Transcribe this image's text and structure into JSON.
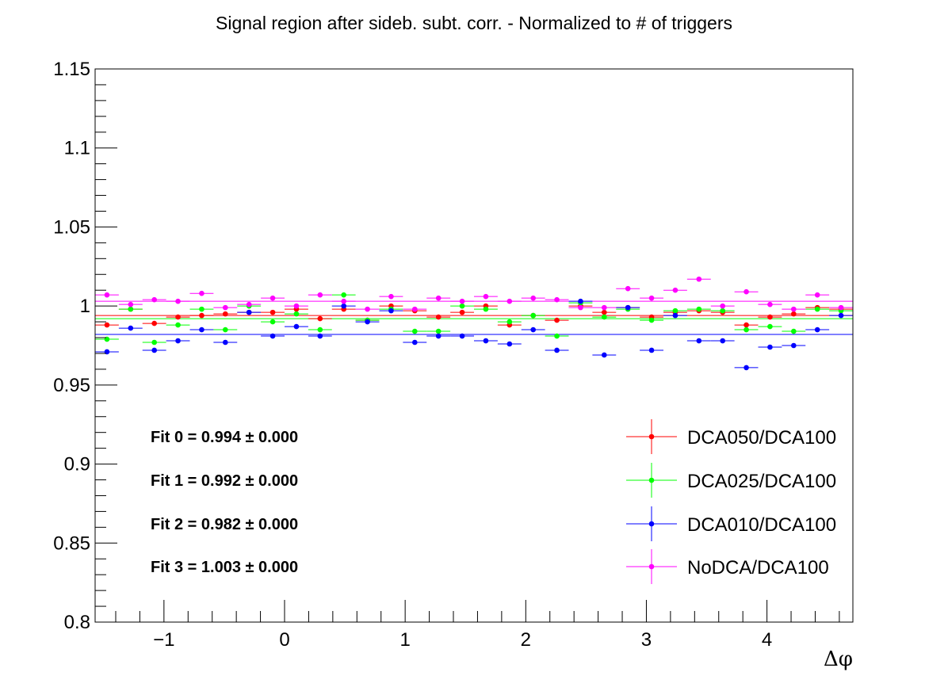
{
  "chart_data": {
    "type": "scatter",
    "title": "Signal region after sideb. subt. corr. - Normalized to # of triggers",
    "xlabel": "Δφ",
    "ylabel": "",
    "xlim": [
      -1.5708,
      4.7124
    ],
    "ylim": [
      0.8,
      1.15
    ],
    "x_ticks": [
      {
        "value": -1,
        "label": "−1"
      },
      {
        "value": 0,
        "label": "0"
      },
      {
        "value": 1,
        "label": "1"
      },
      {
        "value": 2,
        "label": "2"
      },
      {
        "value": 3,
        "label": "3"
      },
      {
        "value": 4,
        "label": "4"
      }
    ],
    "y_ticks": [
      {
        "value": 0.8,
        "label": "0.8"
      },
      {
        "value": 0.85,
        "label": "0.85"
      },
      {
        "value": 0.9,
        "label": "0.9"
      },
      {
        "value": 0.95,
        "label": "0.95"
      },
      {
        "value": 1.0,
        "label": "1"
      },
      {
        "value": 1.05,
        "label": "1.05"
      },
      {
        "value": 1.1,
        "label": "1.1"
      },
      {
        "value": 1.15,
        "label": "1.15"
      }
    ],
    "grid": false,
    "legend_position": "bottom-right",
    "bin_width": 0.19635,
    "x": [
      -1.4726,
      -1.2763,
      -1.0799,
      -0.8836,
      -0.6872,
      -0.4909,
      -0.2945,
      -0.0982,
      0.0982,
      0.2945,
      0.4909,
      0.6872,
      0.8836,
      1.0799,
      1.2763,
      1.4726,
      1.669,
      1.8653,
      2.0617,
      2.258,
      2.4544,
      2.6507,
      2.8471,
      3.0434,
      3.2398,
      3.4361,
      3.6325,
      3.8288,
      4.0252,
      4.2215,
      4.4179,
      4.6142
    ],
    "series": [
      {
        "name": "DCA050/DCA100",
        "color": "#ff0000",
        "fit": 0.994,
        "values": [
          0.988,
          0.998,
          0.989,
          0.993,
          0.994,
          0.995,
          0.996,
          0.996,
          0.998,
          0.992,
          0.998,
          0.991,
          1.0,
          0.997,
          0.993,
          0.996,
          1.0,
          0.988,
          0.994,
          0.991,
          1.0,
          0.996,
          0.999,
          0.993,
          0.996,
          0.997,
          0.996,
          0.988,
          0.993,
          0.995,
          0.999,
          0.998
        ]
      },
      {
        "name": "DCA025/DCA100",
        "color": "#00ff00",
        "fit": 0.992,
        "values": [
          0.979,
          0.998,
          0.977,
          0.988,
          0.998,
          0.985,
          1.0,
          0.99,
          0.995,
          0.985,
          1.007,
          0.991,
          0.998,
          0.984,
          0.984,
          1.0,
          0.998,
          0.99,
          0.994,
          0.981,
          1.002,
          0.993,
          0.998,
          0.991,
          0.997,
          0.998,
          0.997,
          0.985,
          0.987,
          0.984,
          0.998,
          0.997
        ]
      },
      {
        "name": "DCA010/DCA100",
        "color": "#0000ff",
        "fit": 0.982,
        "values": [
          0.971,
          0.986,
          0.972,
          0.978,
          0.985,
          0.977,
          0.996,
          0.981,
          0.987,
          0.981,
          1.0,
          0.99,
          0.997,
          0.977,
          0.981,
          0.981,
          0.978,
          0.976,
          0.985,
          0.972,
          1.003,
          0.969,
          0.999,
          0.972,
          0.994,
          0.978,
          0.978,
          0.961,
          0.974,
          0.975,
          0.985,
          0.994
        ]
      },
      {
        "name": "NoDCA/DCA100",
        "color": "#ff00ff",
        "fit": 1.003,
        "values": [
          1.007,
          1.001,
          1.004,
          1.003,
          1.008,
          0.999,
          1.001,
          1.005,
          1.0,
          1.007,
          1.003,
          0.998,
          1.006,
          0.998,
          1.005,
          1.003,
          1.006,
          1.003,
          1.005,
          1.004,
          0.999,
          0.999,
          1.011,
          1.005,
          1.01,
          1.017,
          1.0,
          1.009,
          1.001,
          0.998,
          1.007,
          0.999
        ]
      }
    ],
    "fit_lines": [
      {
        "label": "Fit 0 = 0.994",
        "error": "± 0.000"
      },
      {
        "label": "Fit 1 = 0.992",
        "error": "± 0.000"
      },
      {
        "label": "Fit 2 = 0.982",
        "error": "± 0.000"
      },
      {
        "label": "Fit 3 = 1.003",
        "error": "± 0.000"
      }
    ]
  }
}
